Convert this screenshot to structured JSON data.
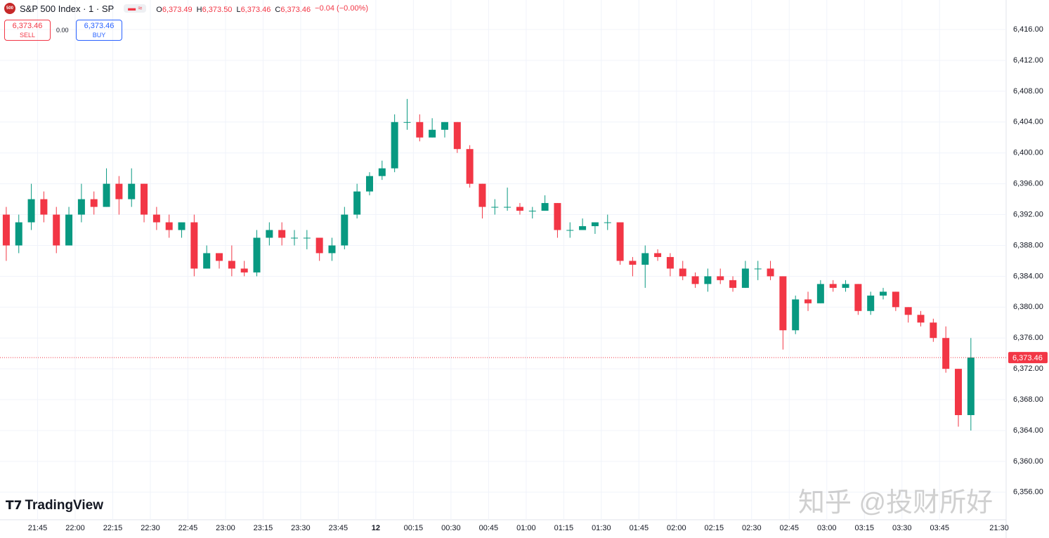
{
  "header": {
    "symbol": "S&P 500 Index · 1 · SP",
    "open_label": "O",
    "open": "6,373.49",
    "high_label": "H",
    "high": "6,373.50",
    "low_label": "L",
    "low": "6,373.46",
    "close_label": "C",
    "close": "6,373.46",
    "change": "−0.04 (−0.00%)",
    "sell_price": "6,373.46",
    "sell_label": "SELL",
    "spread": "0.00",
    "buy_price": "6,373.46",
    "buy_label": "BUY"
  },
  "brand": "TradingView",
  "watermark": "知乎 @投财所好",
  "chart_data": {
    "type": "candlestick",
    "up_color": "#089981",
    "down_color": "#f23645",
    "grid": true,
    "categories": [
      null,
      null,
      null,
      "21:45",
      null,
      null,
      "22:00",
      null,
      null,
      "22:15",
      null,
      null,
      "22:30",
      null,
      null,
      "22:45",
      null,
      null,
      "23:00",
      null,
      null,
      "23:15",
      null,
      null,
      "23:30",
      null,
      null,
      "23:45",
      null,
      null,
      "12",
      null,
      null,
      "00:15",
      null,
      null,
      "00:30",
      null,
      null,
      "00:45",
      null,
      null,
      "01:00",
      null,
      null,
      "01:15",
      null,
      null,
      "01:30",
      null,
      null,
      "01:45",
      null,
      null,
      "02:00",
      null,
      null,
      "02:15",
      null,
      null,
      "02:30",
      null,
      null,
      "02:45",
      null,
      null,
      "03:00",
      null,
      null,
      "03:15",
      null,
      null,
      "03:30",
      null,
      null,
      "03:45",
      null,
      null
    ],
    "x_end_label": "21:30",
    "open": [
      6392,
      6388,
      6391,
      6394,
      6392,
      6388,
      6392,
      6394,
      6393,
      6396,
      6394,
      6396,
      6392,
      6391,
      6390,
      6391,
      6385,
      6387,
      6386,
      6385,
      6384.5,
      6389,
      6390,
      6389,
      6389,
      6389,
      6387,
      6388,
      6392,
      6395,
      6397,
      6398,
      6404,
      6404,
      6402,
      6403,
      6404,
      6400.5,
      6396,
      6393,
      6393,
      6393,
      6392.5,
      6392.5,
      6393.5,
      6390,
      6390,
      6390.5,
      6391,
      6391,
      6386,
      6385.5,
      6387,
      6386.5,
      6385,
      6384,
      6383,
      6384,
      6383.5,
      6382.5,
      6385,
      6385,
      6384,
      6377,
      6381,
      6380.5,
      6383,
      6382.5,
      6383,
      6379.5,
      6381.5,
      6382,
      6380,
      6379,
      6378,
      6376,
      6372,
      6366
    ],
    "high": [
      6393,
      6392,
      6396,
      6395,
      6393,
      6393,
      6396,
      6395,
      6398,
      6397,
      6398,
      6396,
      6393,
      6392,
      6391,
      6392,
      6388,
      6387,
      6388,
      6386,
      6390,
      6391,
      6391,
      6390,
      6390,
      6389,
      6389,
      6393,
      6396,
      6397.5,
      6399,
      6405,
      6407,
      6405,
      6404.5,
      6404,
      6404,
      6401,
      6396,
      6394,
      6395.5,
      6393.5,
      6393,
      6394.5,
      6393.5,
      6391,
      6391.5,
      6391,
      6392,
      6391,
      6386.5,
      6388,
      6387.5,
      6387,
      6386,
      6384.5,
      6385,
      6385,
      6384,
      6386,
      6386,
      6386,
      6384,
      6381.5,
      6382,
      6383.5,
      6383.5,
      6383.5,
      6383,
      6382,
      6382.5,
      6382,
      6380,
      6379.5,
      6378.5,
      6377.5,
      6372,
      6376
    ],
    "low": [
      6386,
      6387,
      6390,
      6391,
      6387,
      6388,
      6391,
      6392,
      6393,
      6392,
      6393,
      6391,
      6390,
      6389,
      6389,
      6384,
      6385,
      6385,
      6384,
      6384,
      6384,
      6388,
      6388,
      6388,
      6387.5,
      6386,
      6386,
      6387.5,
      6391.5,
      6394.5,
      6396.5,
      6397.5,
      6403,
      6401.5,
      6402,
      6402,
      6400,
      6395.5,
      6391.5,
      6392,
      6392.5,
      6392,
      6391.5,
      6392.5,
      6389,
      6389,
      6390,
      6389.5,
      6390,
      6385.5,
      6384,
      6382.5,
      6386,
      6384,
      6383.5,
      6382.5,
      6382,
      6383,
      6382,
      6382.5,
      6383.5,
      6383.5,
      6374.5,
      6376.5,
      6379.5,
      6380.5,
      6382,
      6382,
      6379,
      6379,
      6381,
      6379.5,
      6378,
      6377.5,
      6375.5,
      6371.5,
      6364.5,
      6364
    ],
    "close": [
      6388,
      6391,
      6394,
      6392,
      6388,
      6392,
      6394,
      6393,
      6396,
      6394,
      6396,
      6392,
      6391,
      6390,
      6391,
      6385,
      6387,
      6386,
      6385,
      6384.5,
      6389,
      6390,
      6389,
      6389,
      6389,
      6387,
      6388,
      6392,
      6395,
      6397,
      6398,
      6404,
      6404,
      6402,
      6403,
      6404,
      6400.5,
      6396,
      6393,
      6393,
      6393,
      6392.5,
      6392.5,
      6393.5,
      6390,
      6390,
      6390.5,
      6391,
      6391,
      6386,
      6385.5,
      6387,
      6386.5,
      6385,
      6384,
      6383,
      6384,
      6383.5,
      6382.5,
      6385,
      6385,
      6384,
      6377,
      6381,
      6380.5,
      6383,
      6382.5,
      6383,
      6379.5,
      6381.5,
      6382,
      6380,
      6379,
      6378,
      6376,
      6372,
      6366,
      6373.46
    ],
    "last_price": {
      "value": 6373.46,
      "label": "6,373.46"
    },
    "ylim": [
      6352.43,
      6419.83
    ],
    "yticks": [
      {
        "value": 6356,
        "label": "6,356.00"
      },
      {
        "value": 6360,
        "label": "6,360.00"
      },
      {
        "value": 6364,
        "label": "6,364.00"
      },
      {
        "value": 6368,
        "label": "6,368.00"
      },
      {
        "value": 6372,
        "label": "6,372.00"
      },
      {
        "value": 6376,
        "label": "6,376.00"
      },
      {
        "value": 6380,
        "label": "6,380.00"
      },
      {
        "value": 6384,
        "label": "6,384.00"
      },
      {
        "value": 6388,
        "label": "6,388.00"
      },
      {
        "value": 6392,
        "label": "6,392.00"
      },
      {
        "value": 6396,
        "label": "6,396.00"
      },
      {
        "value": 6400,
        "label": "6,400.00"
      },
      {
        "value": 6404,
        "label": "6,404.00"
      },
      {
        "value": 6408,
        "label": "6,408.00"
      },
      {
        "value": 6412,
        "label": "6,412.00"
      },
      {
        "value": 6416,
        "label": "6,416.00"
      }
    ]
  }
}
